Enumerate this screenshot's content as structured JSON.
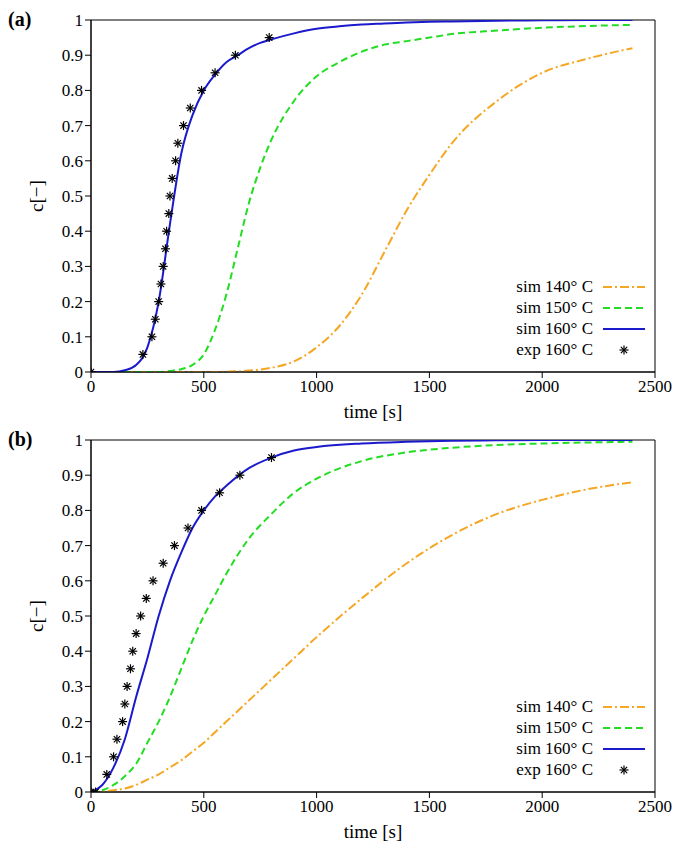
{
  "chart_data": [
    {
      "type": "line",
      "title": "(a)",
      "x_label": "time [s]",
      "y_label": "c[−]",
      "xlim": [
        0,
        2500
      ],
      "xticks": [
        0,
        500,
        1000,
        1500,
        2000,
        2500
      ],
      "ylim": [
        0,
        1
      ],
      "yticks": [
        0,
        0.1,
        0.2,
        0.3,
        0.4,
        0.5,
        0.6,
        0.7,
        0.8,
        0.9,
        1
      ],
      "legend": "lower right",
      "x": [
        0,
        100,
        150,
        200,
        250,
        300,
        350,
        400,
        450,
        500,
        550,
        600,
        650,
        700,
        750,
        800,
        900,
        1000,
        1100,
        1200,
        1300,
        1400,
        1500,
        1600,
        1800,
        2000,
        2200,
        2400
      ],
      "series": [
        {
          "name": "sim 140° C",
          "color": "#f5a623",
          "line_style": "dashdot",
          "values": [
            0,
            0,
            0,
            0,
            0,
            0,
            0,
            0,
            0,
            0,
            0,
            0.001,
            0.002,
            0.004,
            0.007,
            0.012,
            0.03,
            0.07,
            0.13,
            0.22,
            0.34,
            0.46,
            0.56,
            0.65,
            0.77,
            0.85,
            0.89,
            0.92
          ]
        },
        {
          "name": "sim 150° C",
          "color": "#22dd22",
          "line_style": "dashed",
          "values": [
            0,
            0,
            0,
            0,
            0,
            0,
            0.003,
            0.008,
            0.02,
            0.05,
            0.12,
            0.22,
            0.35,
            0.48,
            0.58,
            0.66,
            0.77,
            0.84,
            0.88,
            0.91,
            0.93,
            0.94,
            0.95,
            0.96,
            0.97,
            0.978,
            0.983,
            0.986
          ]
        },
        {
          "name": "sim 160° C",
          "color": "#1a1acc",
          "line_style": "solid",
          "values": [
            0,
            0,
            0.005,
            0.02,
            0.07,
            0.2,
            0.42,
            0.62,
            0.73,
            0.8,
            0.845,
            0.88,
            0.9,
            0.92,
            0.935,
            0.945,
            0.962,
            0.975,
            0.982,
            0.987,
            0.99,
            0.993,
            0.995,
            0.996,
            0.998,
            0.999,
            1,
            1
          ]
        },
        {
          "name": "exp 160° C",
          "color": "#000000",
          "type": "scatter",
          "marker": "star",
          "line_style": "none",
          "x": [
            0,
            230,
            270,
            285,
            300,
            310,
            320,
            330,
            335,
            345,
            350,
            360,
            375,
            385,
            410,
            440,
            490,
            550,
            640,
            790
          ],
          "values": [
            0,
            0.05,
            0.1,
            0.15,
            0.2,
            0.25,
            0.3,
            0.35,
            0.4,
            0.45,
            0.5,
            0.55,
            0.6,
            0.65,
            0.7,
            0.75,
            0.8,
            0.85,
            0.9,
            0.95
          ]
        }
      ]
    },
    {
      "type": "line",
      "title": "(b)",
      "x_label": "time [s]",
      "y_label": "c[−]",
      "xlim": [
        0,
        2500
      ],
      "xticks": [
        0,
        500,
        1000,
        1500,
        2000,
        2500
      ],
      "ylim": [
        0,
        1
      ],
      "yticks": [
        0,
        0.1,
        0.2,
        0.3,
        0.4,
        0.5,
        0.6,
        0.7,
        0.8,
        0.9,
        1
      ],
      "legend": "lower right",
      "x": [
        0,
        50,
        100,
        150,
        200,
        250,
        300,
        350,
        400,
        450,
        500,
        550,
        600,
        700,
        800,
        900,
        1000,
        1200,
        1400,
        1600,
        1800,
        2000,
        2200,
        2400
      ],
      "series": [
        {
          "name": "sim 140° C",
          "color": "#f5a623",
          "line_style": "dashdot",
          "values": [
            0,
            0.001,
            0.005,
            0.01,
            0.02,
            0.035,
            0.05,
            0.07,
            0.09,
            0.115,
            0.14,
            0.17,
            0.2,
            0.26,
            0.32,
            0.38,
            0.44,
            0.55,
            0.65,
            0.73,
            0.79,
            0.83,
            0.86,
            0.88
          ]
        },
        {
          "name": "sim 150° C",
          "color": "#22dd22",
          "line_style": "dashed",
          "values": [
            0,
            0.005,
            0.02,
            0.045,
            0.08,
            0.14,
            0.2,
            0.27,
            0.35,
            0.43,
            0.5,
            0.56,
            0.62,
            0.72,
            0.79,
            0.85,
            0.89,
            0.94,
            0.965,
            0.978,
            0.986,
            0.99,
            0.993,
            0.995
          ]
        },
        {
          "name": "sim 160° C",
          "color": "#1a1acc",
          "line_style": "solid",
          "values": [
            0,
            0.02,
            0.07,
            0.15,
            0.27,
            0.38,
            0.5,
            0.6,
            0.68,
            0.75,
            0.8,
            0.84,
            0.87,
            0.92,
            0.95,
            0.97,
            0.98,
            0.99,
            0.995,
            0.998,
            0.999,
            1,
            1,
            1
          ]
        },
        {
          "name": "exp 160° C",
          "color": "#000000",
          "type": "scatter",
          "marker": "star",
          "line_style": "none",
          "x": [
            0,
            20,
            70,
            100,
            115,
            140,
            150,
            160,
            175,
            185,
            200,
            220,
            245,
            275,
            320,
            370,
            430,
            490,
            570,
            660,
            800
          ],
          "values": [
            0,
            0,
            0.05,
            0.1,
            0.15,
            0.2,
            0.25,
            0.3,
            0.35,
            0.4,
            0.45,
            0.5,
            0.55,
            0.6,
            0.65,
            0.7,
            0.75,
            0.8,
            0.85,
            0.9,
            0.95
          ]
        }
      ]
    }
  ]
}
